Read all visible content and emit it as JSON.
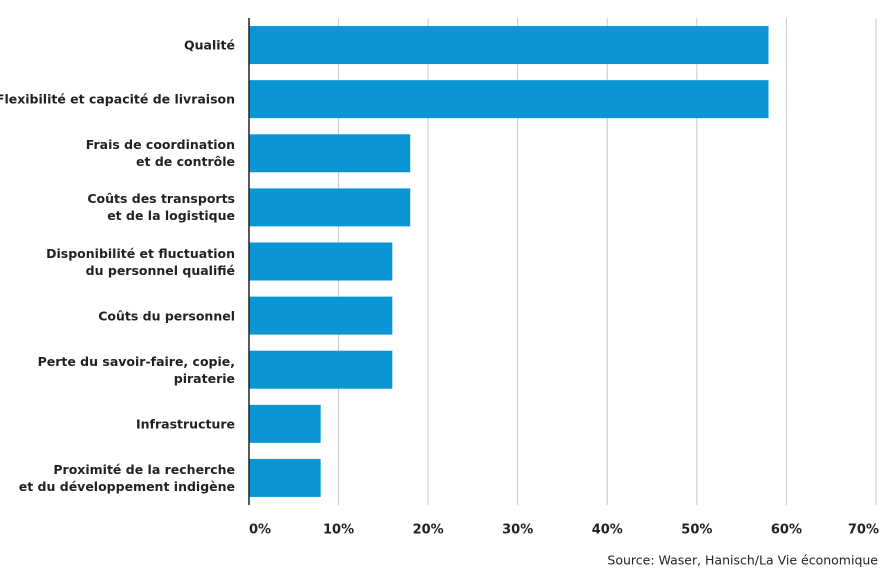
{
  "chart_data": {
    "type": "bar",
    "orientation": "horizontal",
    "categories": [
      "Qualité",
      "Flexibilité et capacité de livraison",
      "Frais de coordination\net de contrôle",
      "Coûts des transports\net de la logistique",
      "Disponibilité et fluctuation\ndu personnel qualifié",
      "Coûts du personnel",
      "Perte du savoir-faire, copie,\npiraterie",
      "Infrastructure",
      "Proximité de la recherche\net du développement indigène"
    ],
    "values": [
      58,
      58,
      18,
      18,
      16,
      16,
      16,
      8,
      8
    ],
    "color": "#0a96d4",
    "xlim": [
      0,
      70
    ],
    "xticks": [
      {
        "value": 0,
        "label": "0%"
      },
      {
        "value": 10,
        "label": "10%"
      },
      {
        "value": 20,
        "label": "20%"
      },
      {
        "value": 30,
        "label": "30%"
      },
      {
        "value": 40,
        "label": "40%"
      },
      {
        "value": 50,
        "label": "50%"
      },
      {
        "value": 60,
        "label": "60%"
      },
      {
        "value": 70,
        "label": "70%"
      }
    ],
    "grid": true,
    "source": "Source: Waser, Hanisch/La Vie économique"
  }
}
